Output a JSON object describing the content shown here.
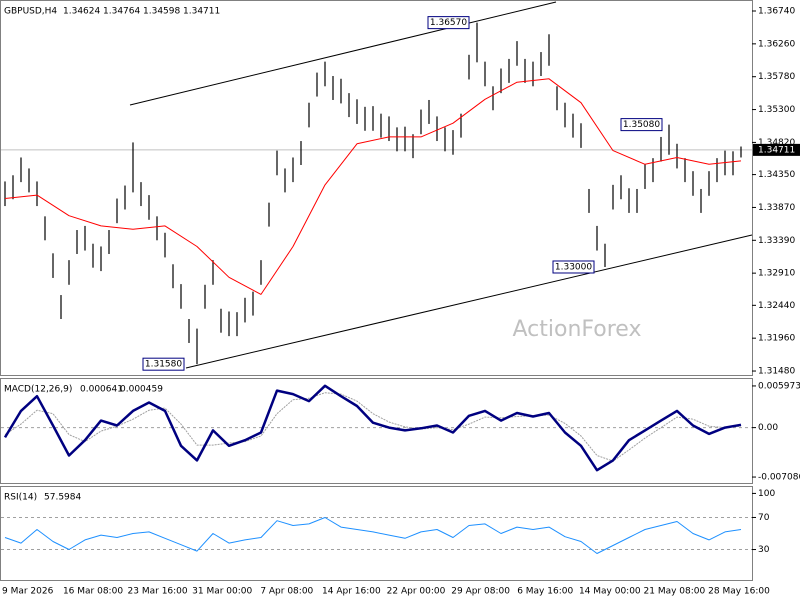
{
  "chart_data": [
    {
      "type": "bar-hl",
      "title": "GBPUSD,H4",
      "quote": [
        1.34624,
        1.34764,
        1.34598,
        1.34711
      ],
      "color": "#000000",
      "high": [
        1.3425,
        1.3434,
        1.346,
        1.3444,
        1.3425,
        1.3374,
        1.332,
        1.3259,
        1.331,
        1.3354,
        1.336,
        1.3334,
        1.333,
        1.3354,
        1.34,
        1.3419,
        1.3482,
        1.3424,
        1.3405,
        1.3374,
        1.335,
        1.3304,
        1.3275,
        1.3224,
        1.321,
        1.3274,
        1.331,
        1.3239,
        1.3235,
        1.3234,
        1.3255,
        1.3264,
        1.331,
        1.3394,
        1.347,
        1.3444,
        1.346,
        1.3484,
        1.354,
        1.3584,
        1.36,
        1.3579,
        1.3575,
        1.3554,
        1.3545,
        1.3534,
        1.3535,
        1.3524,
        1.352,
        1.3504,
        1.3505,
        1.3494,
        1.353,
        1.3544,
        1.352,
        1.3504,
        1.35,
        1.3524,
        1.361,
        1.3657,
        1.36,
        1.3564,
        1.359,
        1.3604,
        1.363,
        1.3604,
        1.36,
        1.3614,
        1.364,
        1.3564,
        1.354,
        1.3524,
        1.351,
        1.3414,
        1.336,
        1.3334,
        1.342,
        1.3434,
        1.3415,
        1.3414,
        1.345,
        1.3459,
        1.349,
        1.3508,
        1.348,
        1.3459,
        1.344,
        1.3414,
        1.344,
        1.3459,
        1.347,
        1.3469,
        1.3476
      ],
      "low": [
        1.3389,
        1.3399,
        1.3424,
        1.3409,
        1.3389,
        1.3339,
        1.3284,
        1.3224,
        1.3274,
        1.3319,
        1.3324,
        1.3299,
        1.3294,
        1.3319,
        1.3364,
        1.3384,
        1.3409,
        1.3389,
        1.3369,
        1.3339,
        1.3314,
        1.3269,
        1.3239,
        1.3189,
        1.3158,
        1.3239,
        1.3274,
        1.3204,
        1.3199,
        1.3199,
        1.3219,
        1.3229,
        1.3274,
        1.3359,
        1.3434,
        1.3409,
        1.3424,
        1.3449,
        1.3504,
        1.3549,
        1.3564,
        1.3544,
        1.3539,
        1.3519,
        1.3509,
        1.3499,
        1.3499,
        1.3489,
        1.3484,
        1.3469,
        1.3469,
        1.3459,
        1.3494,
        1.3509,
        1.3484,
        1.3469,
        1.3464,
        1.3489,
        1.3574,
        1.3599,
        1.3564,
        1.3529,
        1.3554,
        1.3569,
        1.3594,
        1.3569,
        1.3564,
        1.3579,
        1.3594,
        1.3529,
        1.3504,
        1.3489,
        1.3474,
        1.3379,
        1.3324,
        1.33,
        1.3384,
        1.3399,
        1.3379,
        1.3379,
        1.3414,
        1.3424,
        1.3454,
        1.3464,
        1.3444,
        1.3424,
        1.3404,
        1.3379,
        1.3404,
        1.3424,
        1.3434,
        1.3434,
        1.346
      ],
      "ma": {
        "color": "#ff0000",
        "values": [
          1.34,
          1.3405,
          1.3375,
          1.336,
          1.3355,
          1.336,
          1.333,
          1.3285,
          1.326,
          1.333,
          1.342,
          1.348,
          1.349,
          1.349,
          1.351,
          1.3545,
          1.357,
          1.3575,
          1.354,
          1.347,
          1.345,
          1.346,
          1.345,
          1.3455
        ]
      },
      "last": 1.34711,
      "ylim": [
        1.31422,
        1.36886
      ],
      "yticks": [
        {
          "value": 1.3674,
          "label": "1.36740"
        },
        {
          "value": 1.3626,
          "label": "1.36260"
        },
        {
          "value": 1.3578,
          "label": "1.35780"
        },
        {
          "value": 1.353,
          "label": "1.35300"
        },
        {
          "value": 1.3482,
          "label": "1.34820"
        },
        {
          "value": 1.3435,
          "label": "1.34350"
        },
        {
          "value": 1.3387,
          "label": "1.33870"
        },
        {
          "value": 1.3339,
          "label": "1.33390"
        },
        {
          "value": 1.3291,
          "label": "1.32910"
        },
        {
          "value": 1.3244,
          "label": "1.32440"
        },
        {
          "value": 1.3196,
          "label": "1.31960"
        },
        {
          "value": 1.3148,
          "label": "1.31480"
        }
      ],
      "annotations": [
        {
          "value": 1.3657,
          "label": "1.36570"
        },
        {
          "value": 1.3508,
          "label": "1.35080"
        },
        {
          "value": 1.33,
          "label": "1.33000"
        },
        {
          "value": 1.3158,
          "label": "1.31580"
        }
      ],
      "watermark": "ActionForex",
      "x_labels": [
        "9 Mar 2026",
        "16 Mar 08:00",
        "23 Mar 16:00",
        "31 Mar 00:00",
        "7 Apr 08:00",
        "14 Apr 16:00",
        "22 Apr 00:00",
        "29 Apr 08:00",
        "6 May 16:00",
        "14 May 00:00",
        "21 May 08:00",
        "28 May 16:00"
      ]
    },
    {
      "type": "line",
      "title": "MACD(12,26,9)",
      "quote": [
        0.000641,
        0.000459
      ],
      "series": [
        {
          "color": "#000080",
          "values": [
            -0.0014,
            0.0024,
            0.0045,
            0.0003,
            -0.004,
            -0.0018,
            0.001,
            0.0003,
            0.0024,
            0.0036,
            0.0024,
            -0.0026,
            -0.0047,
            -0.0004,
            -0.0026,
            -0.0018,
            -0.0007,
            0.0053,
            0.0048,
            0.0038,
            0.006,
            0.0045,
            0.0031,
            0.0007,
            0,
            -0.0004,
            -0.0001,
            0.0003,
            -0.0007,
            0.0017,
            0.0024,
            0.001,
            0.0021,
            0.0016,
            0.0021,
            -0.0007,
            -0.0026,
            -0.0061,
            -0.0047,
            -0.0018,
            -0.0004,
            0.001,
            0.0024,
            0.0003,
            -0.0009,
            0,
            0.0004
          ]
        },
        {
          "color": "#a0a0a0",
          "values": [
            -0.001,
            0.0005,
            0.0025,
            0.002,
            -0.001,
            -0.002,
            -0.0005,
            0.0002,
            0.0012,
            0.0025,
            0.0028,
            0.0005,
            -0.0025,
            -0.0025,
            -0.0022,
            -0.002,
            -0.0012,
            0.002,
            0.004,
            0.0042,
            0.005,
            0.0048,
            0.0038,
            0.002,
            0.0008,
            0.0001,
            -0.0002,
            0,
            -0.0003,
            0.0005,
            0.0015,
            0.0014,
            0.0016,
            0.0017,
            0.0018,
            0.0006,
            -0.0012,
            -0.004,
            -0.0048,
            -0.0032,
            -0.0015,
            0,
            0.0015,
            0.0012,
            0.0002,
            0,
            0.0002
          ]
        }
      ],
      "ylim": [
        -0.007939,
        0.006968
      ],
      "yticks": [
        0.005973,
        {
          "value": 0,
          "label": "0.00"
        },
        -0.007086
      ],
      "levels": [
        0
      ]
    },
    {
      "type": "line",
      "title": "RSI(14)",
      "quote": [
        57.5984
      ],
      "series": [
        {
          "color": "#1e90ff",
          "values": [
            45,
            38,
            55,
            40,
            30,
            42,
            48,
            45,
            50,
            52,
            44,
            36,
            28,
            50,
            38,
            42,
            45,
            66,
            60,
            62,
            70,
            58,
            55,
            52,
            48,
            44,
            52,
            55,
            45,
            60,
            62,
            50,
            58,
            55,
            58,
            46,
            40,
            25,
            35,
            45,
            55,
            60,
            65,
            50,
            42,
            52,
            55
          ]
        }
      ],
      "ylim": [
        -8,
        108
      ],
      "yticks": [
        100,
        70,
        30
      ],
      "levels": [
        70,
        30
      ]
    }
  ]
}
